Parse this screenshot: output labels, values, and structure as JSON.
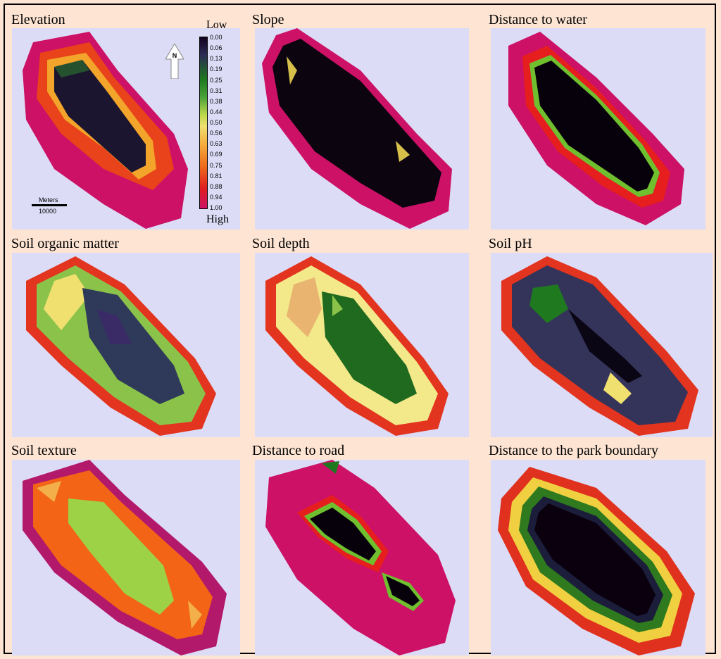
{
  "panels": [
    {
      "title": "Elevation",
      "scheme": "elevation"
    },
    {
      "title": "Slope",
      "scheme": "slope"
    },
    {
      "title": "Distance to water",
      "scheme": "water"
    },
    {
      "title": "Soil organic matter",
      "scheme": "organic"
    },
    {
      "title": "Soil depth",
      "scheme": "depth"
    },
    {
      "title": "Soil pH",
      "scheme": "ph"
    },
    {
      "title": "Soil texture",
      "scheme": "texture"
    },
    {
      "title": "Distance to road",
      "scheme": "road"
    },
    {
      "title": "Distance to the park boundary",
      "scheme": "boundary"
    }
  ],
  "legend": {
    "low_label": "Low",
    "high_label": "High",
    "ticks": [
      "0.00",
      "0.06",
      "0.13",
      "0.19",
      "0.25",
      "0.31",
      "0.38",
      "0.44",
      "0.50",
      "0.56",
      "0.63",
      "0.69",
      "0.75",
      "0.81",
      "0.88",
      "0.94",
      "1.00"
    ]
  },
  "north_arrow": {
    "label": "N",
    "icon": "north-arrow-icon"
  },
  "scale_bar": {
    "unit": "Meters",
    "value": "10000"
  },
  "colors": {
    "background": "#fde4d3",
    "map_background": "#dcdcf7",
    "low": "#14001e",
    "mid_green": "#1f7a1f",
    "high": "#cc1166"
  }
}
